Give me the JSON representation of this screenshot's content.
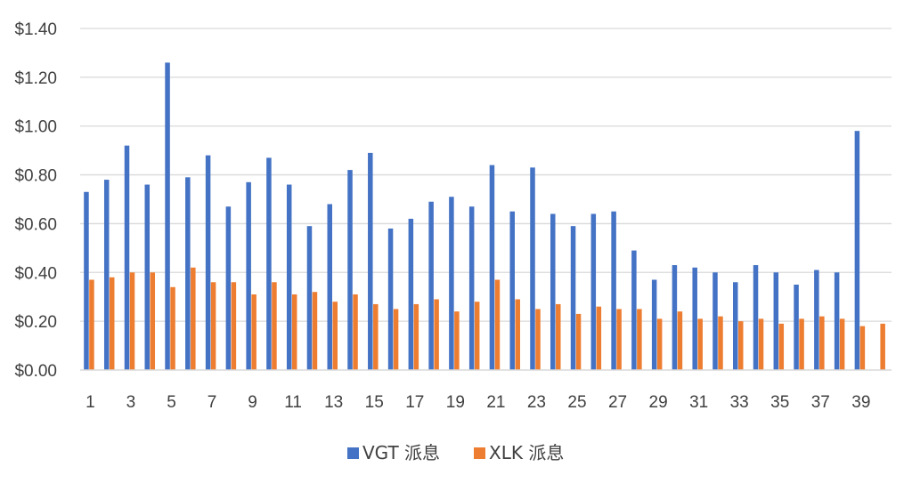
{
  "chart_data": {
    "type": "bar",
    "categories": [
      "1",
      "2",
      "3",
      "4",
      "5",
      "6",
      "7",
      "8",
      "9",
      "10",
      "11",
      "12",
      "13",
      "14",
      "15",
      "16",
      "17",
      "18",
      "19",
      "20",
      "21",
      "22",
      "23",
      "24",
      "25",
      "26",
      "27",
      "28",
      "29",
      "30",
      "31",
      "32",
      "33",
      "34",
      "35",
      "36",
      "37",
      "38",
      "39",
      "40"
    ],
    "x_tick_labels": [
      "1",
      "3",
      "5",
      "7",
      "9",
      "11",
      "13",
      "15",
      "17",
      "19",
      "21",
      "23",
      "25",
      "27",
      "29",
      "31",
      "33",
      "35",
      "37",
      "39"
    ],
    "y_tick_labels": [
      "$0.00",
      "$0.20",
      "$0.40",
      "$0.60",
      "$0.80",
      "$1.00",
      "$1.20",
      "$1.40"
    ],
    "ylim": [
      0,
      1.4
    ],
    "y_step": 0.2,
    "grid": true,
    "legend_position": "bottom",
    "series": [
      {
        "name": "VGT 派息",
        "color": "#4472C4",
        "values": [
          0.73,
          0.78,
          0.92,
          0.76,
          1.26,
          0.79,
          0.88,
          0.67,
          0.77,
          0.87,
          0.76,
          0.59,
          0.68,
          0.82,
          0.89,
          0.58,
          0.62,
          0.69,
          0.71,
          0.67,
          0.84,
          0.65,
          0.83,
          0.64,
          0.59,
          0.64,
          0.65,
          0.49,
          0.37,
          0.43,
          0.42,
          0.4,
          0.36,
          0.43,
          0.4,
          0.35,
          0.41,
          0.4,
          0.98,
          null
        ]
      },
      {
        "name": "XLK 派息",
        "color": "#ED7D31",
        "values": [
          0.37,
          0.38,
          0.4,
          0.4,
          0.34,
          0.42,
          0.36,
          0.36,
          0.31,
          0.36,
          0.31,
          0.32,
          0.28,
          0.31,
          0.27,
          0.25,
          0.27,
          0.29,
          0.24,
          0.28,
          0.37,
          0.29,
          0.25,
          0.27,
          0.23,
          0.26,
          0.25,
          0.25,
          0.21,
          0.24,
          0.21,
          0.22,
          0.2,
          0.21,
          0.19,
          0.21,
          0.22,
          0.21,
          0.18,
          0.19
        ]
      }
    ],
    "title": "",
    "xlabel": "",
    "ylabel": ""
  }
}
